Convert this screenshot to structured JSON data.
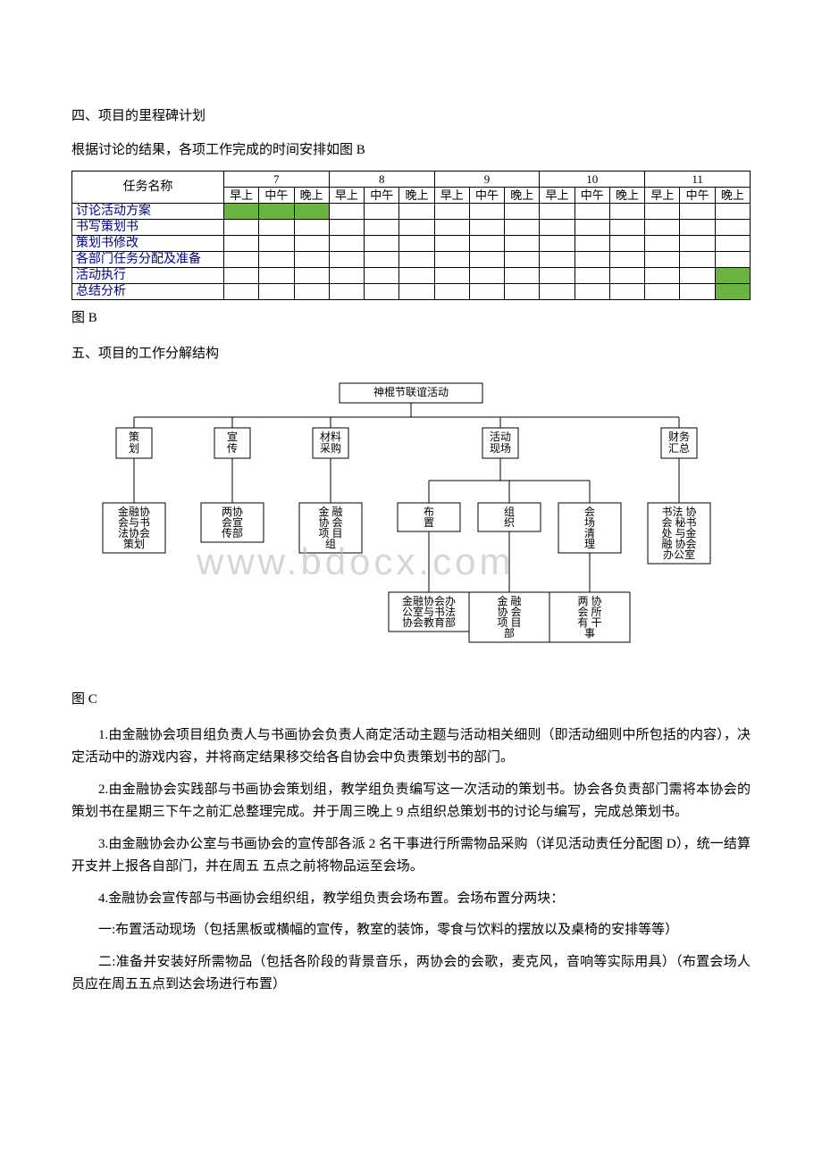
{
  "section4": {
    "title": "四、项目的里程碑计划",
    "intro": "根据讨论的结果，各项工作完成的时间安排如图 B"
  },
  "gantt": {
    "task_header": "任务名称",
    "days": [
      "7",
      "8",
      "9",
      "10",
      "11"
    ],
    "slots": [
      "早上",
      "中午",
      "晚上"
    ],
    "rows": [
      {
        "name": "讨论活动方案",
        "bars": [
          0,
          1,
          2
        ]
      },
      {
        "name": "书写策划书",
        "bars": []
      },
      {
        "name": "策划书修改",
        "bars": []
      },
      {
        "name": "各部门任务分配及准备",
        "bars": []
      },
      {
        "name": "活动执行",
        "bars": [
          14
        ]
      },
      {
        "name": "总结分析",
        "bars": [
          14
        ]
      }
    ],
    "caption": "图 B",
    "header_fill": "#ffffff",
    "bar_color": "#6db33f",
    "row_name_color": "#00008b",
    "border_color": "#000000"
  },
  "section5": {
    "title": "五、项目的工作分解结构"
  },
  "wbs": {
    "root": "神棍节联谊活动",
    "watermark": "www.bdocx.com",
    "caption": "图 C",
    "line_color": "#000000",
    "node_fill": "#ffffff",
    "level2": [
      {
        "label": "策划"
      },
      {
        "label": "宣传"
      },
      {
        "label": "材料采购"
      },
      {
        "label": "活动现场"
      },
      {
        "label": "财务汇总"
      }
    ],
    "level3": [
      {
        "parent": 0,
        "lines": [
          "金融协",
          "会与书",
          "法协会",
          "策划"
        ]
      },
      {
        "parent": 1,
        "lines": [
          "两协",
          "会宣",
          "传部"
        ]
      },
      {
        "parent": 2,
        "lines": [
          "金  融",
          "协  会",
          "项  目",
          "组"
        ]
      },
      {
        "parent": 3,
        "lines": [
          "布",
          "置"
        ]
      },
      {
        "parent": 3,
        "lines": [
          "组",
          "织"
        ]
      },
      {
        "parent": 3,
        "lines": [
          "会",
          "场",
          "清",
          "理"
        ]
      },
      {
        "parent": 4,
        "lines": [
          "书法 协",
          "会 秘书",
          "处 与金",
          "融 协会",
          "办公室"
        ]
      }
    ],
    "level4": [
      {
        "parent": 3,
        "lines": [
          "金融协会办",
          "公室与书法",
          "协会教育部"
        ]
      },
      {
        "parent": 4,
        "lines": [
          "金  融",
          "协  会",
          "项  目",
          "部"
        ]
      },
      {
        "parent": 5,
        "lines": [
          "两  协",
          "会  所",
          "有  干",
          "事"
        ]
      }
    ]
  },
  "paragraphs": {
    "p1": "1.由金融协会项目组负责人与书画协会负责人商定活动主题与活动相关细则（即活动细则中所包括的内容），决定活动中的游戏内容，并将商定结果移交给各自协会中负责策划书的部门。",
    "p2": "2.由金融协会实践部与书画协会策划组，教学组负责编写这一次活动的策划书。协会各负责部门需将本协会的策划书在星期三下午之前汇总整理完成。并于周三晚上 9 点组织总策划书的讨论与编写，完成总策划书。",
    "p3": "3.由金融协会办公室与书画协会的宣传部各派 2 名干事进行所需物品采购（详见活动责任分配图 D），统一结算开支并上报各自部门，并在周五 五点之前将物品运至会场。",
    "p4": "4.金融协会宣传部与书画协会组织组，教学组负责会场布置。会场布置分两块：",
    "p4a": "一:布置活动现场（包括黑板或横幅的宣传，教室的装饰，零食与饮料的摆放以及桌椅的安排等等）",
    "p4b": "二:准备并安装好所需物品（包括各阶段的背景音乐，两协会的会歌，麦克风，音响等实际用具）（布置会场人员应在周五五点到达会场进行布置）"
  }
}
